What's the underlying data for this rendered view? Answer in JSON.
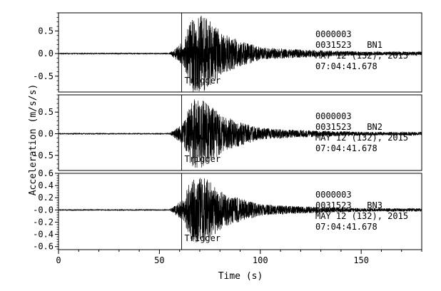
{
  "chart_data": {
    "type": "line",
    "xlabel": "Time (s)",
    "ylabel": "Acceleration (m/s/s)",
    "xlim": [
      0,
      180
    ],
    "x_ticks": [
      0,
      50,
      100,
      150
    ],
    "trigger_time": 61,
    "trigger_label": "Trigger",
    "line_color": "#000000",
    "panels": [
      {
        "channel": "BN1",
        "ylim": [
          -0.85,
          0.9
        ],
        "y_ticks": [
          -0.5,
          0.0,
          0.5
        ],
        "y_tick_labels": [
          "-0.5",
          "0.0",
          "0.5"
        ],
        "peak_abs": 0.85,
        "info": [
          "0000003",
          "0031523   BN1",
          "MAY 12 (132), 2015",
          "07:04:41.678"
        ]
      },
      {
        "channel": "BN2",
        "ylim": [
          -0.85,
          0.9
        ],
        "y_ticks": [
          -0.5,
          0.0,
          0.5
        ],
        "y_tick_labels": [
          "-0.5",
          "0.0",
          "0.5"
        ],
        "peak_abs": 0.8,
        "info": [
          "0000003",
          "0031523   BN2",
          "MAY 12 (132), 2015",
          "07:04:41.678"
        ]
      },
      {
        "channel": "BN3",
        "ylim": [
          -0.65,
          0.6
        ],
        "y_ticks": [
          -0.6,
          -0.4,
          -0.2,
          0.0,
          0.2,
          0.4,
          0.6
        ],
        "y_tick_labels": [
          "-0.6",
          "-0.4",
          "-0.2",
          "-0.0",
          "0.2",
          "0.4",
          "0.6"
        ],
        "peak_abs": 0.55,
        "info": [
          "0000003",
          "0031523   BN3",
          "MAY 12 (132), 2015",
          "07:04:41.678"
        ]
      }
    ]
  }
}
